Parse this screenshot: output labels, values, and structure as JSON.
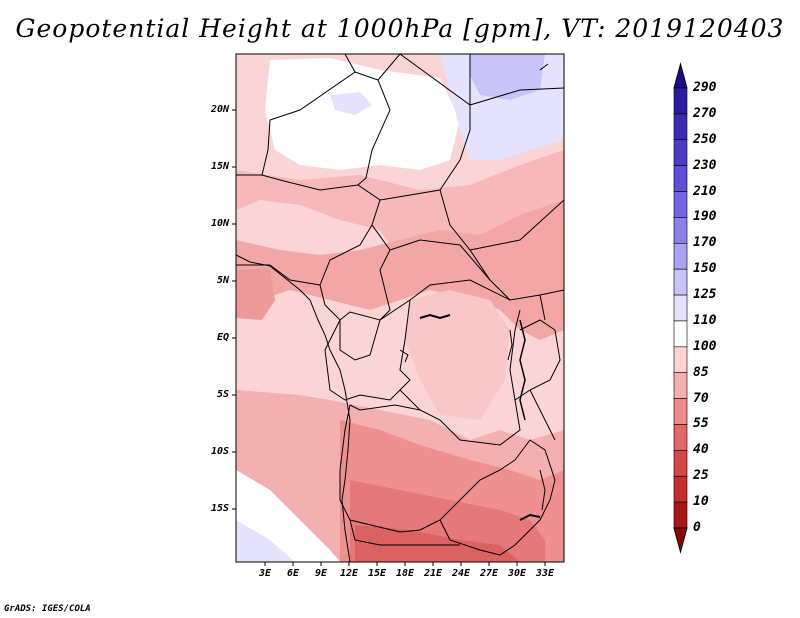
{
  "title": "Geopotential Height at 1000hPa [gpm], VT: 2019120403",
  "credit": "GrADS: IGES/COLA",
  "map": {
    "lat_labels": [
      "20N",
      "15N",
      "10N",
      "5N",
      "EQ",
      "5S",
      "10S",
      "15S"
    ],
    "lon_labels": [
      "3E",
      "6E",
      "9E",
      "12E",
      "15E",
      "18E",
      "21E",
      "24E",
      "27E",
      "30E",
      "33E"
    ]
  },
  "colorbar": {
    "labels": [
      "290",
      "270",
      "250",
      "230",
      "210",
      "190",
      "170",
      "150",
      "125",
      "110",
      "100",
      "85",
      "70",
      "55",
      "40",
      "25",
      "10",
      "0"
    ],
    "colors": [
      "#1a0c8c",
      "#2a1c9c",
      "#3a2cb0",
      "#4c3cc4",
      "#5e50d4",
      "#7466e0",
      "#8c80ea",
      "#aaa2f2",
      "#c8c4f8",
      "#e4e2fc",
      "#ffffff",
      "#fcd4d4",
      "#f6aeae",
      "#ee8a8a",
      "#e26868",
      "#d44848",
      "#c42e2e",
      "#a81818",
      "#8c0808"
    ]
  }
}
